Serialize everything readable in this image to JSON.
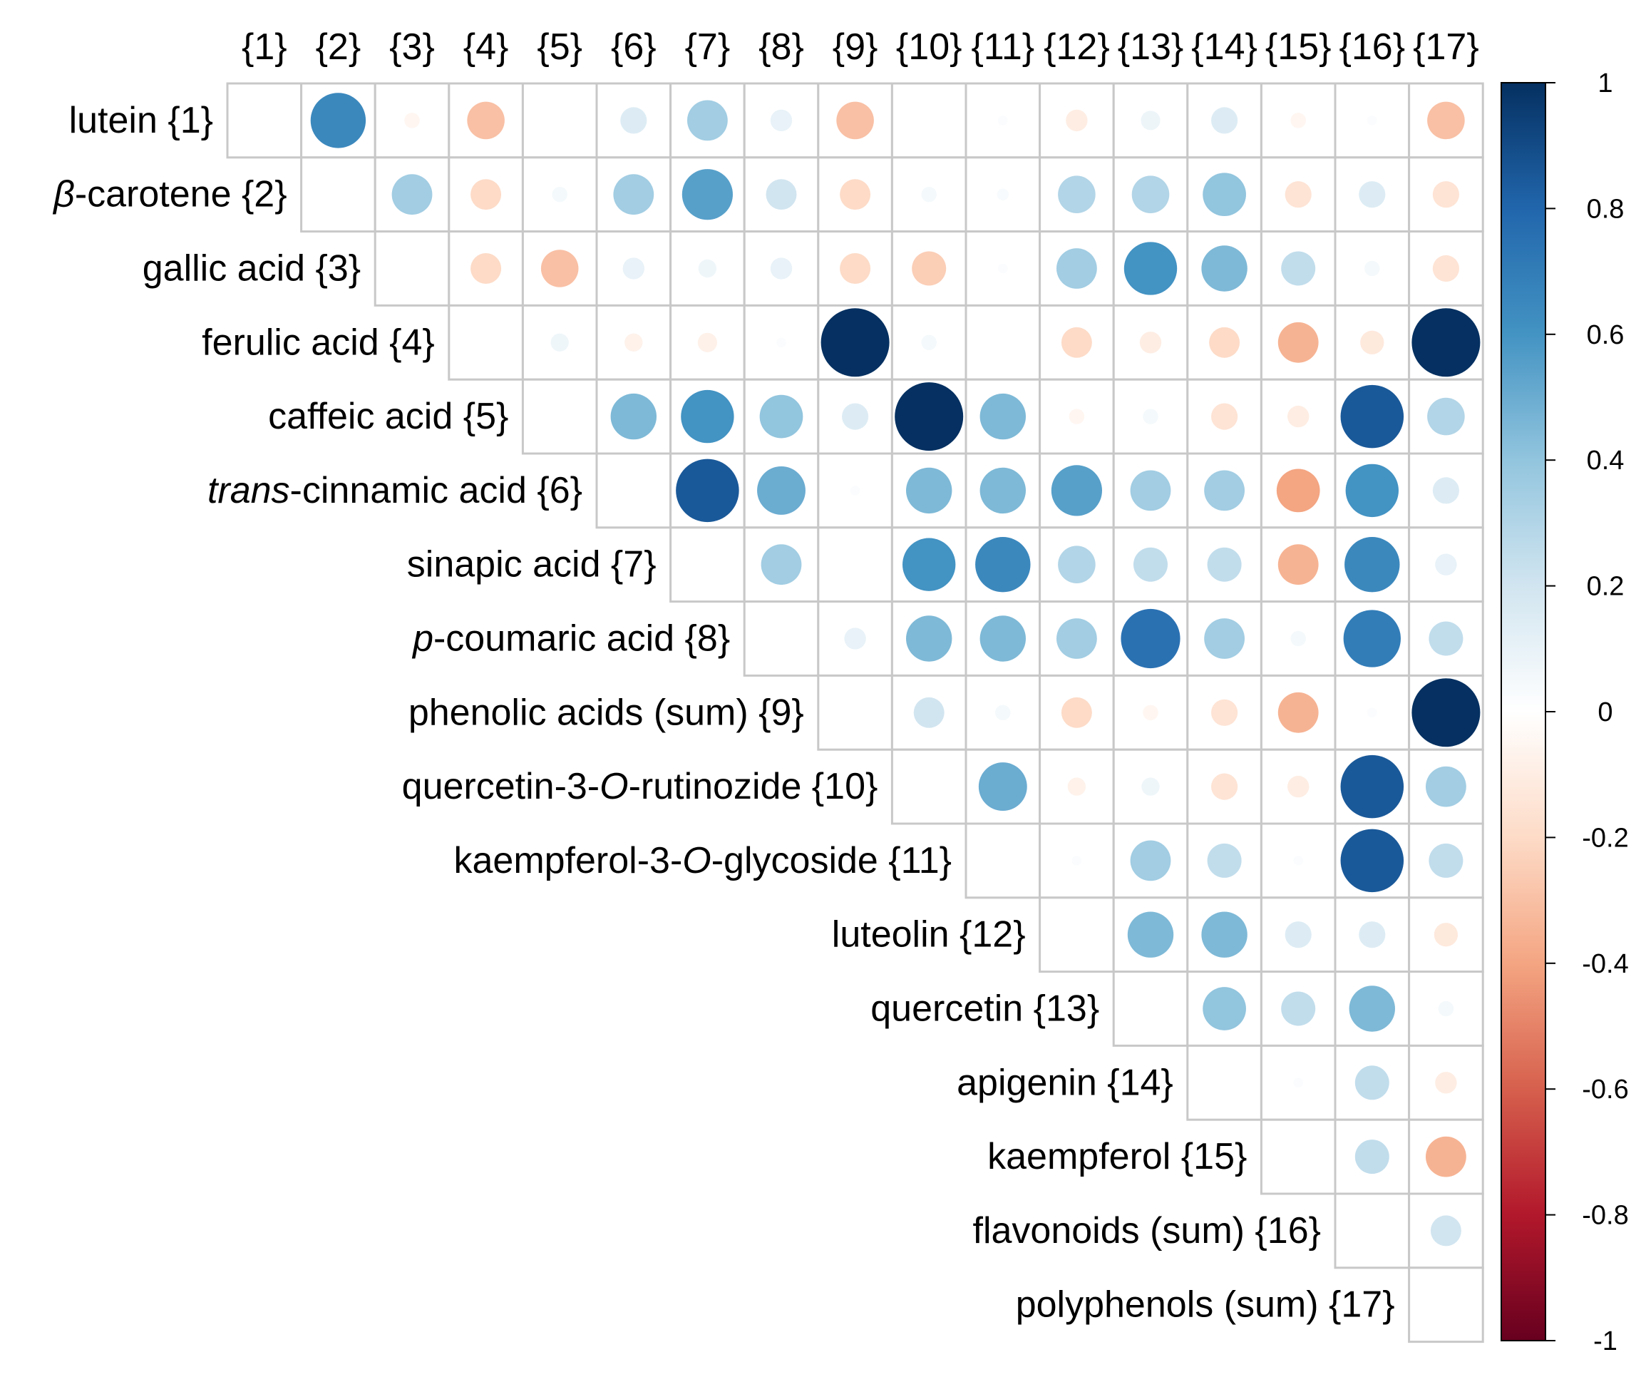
{
  "chart_data": {
    "type": "heatmap",
    "subtype": "correlation-upper-triangle",
    "col_labels": [
      "{1}",
      "{2}",
      "{3}",
      "{4}",
      "{5}",
      "{6}",
      "{7}",
      "{8}",
      "{9}",
      "{10}",
      "{11}",
      "{12}",
      "{13}",
      "{14}",
      "{15}",
      "{16}",
      "{17}"
    ],
    "row_labels": [
      {
        "pre": "",
        "it": "",
        "post": "lutein {1}"
      },
      {
        "pre": "",
        "it": "β",
        "post": "-carotene {2}"
      },
      {
        "pre": "",
        "it": "",
        "post": "gallic acid {3}"
      },
      {
        "pre": "",
        "it": "",
        "post": "ferulic acid {4}"
      },
      {
        "pre": "",
        "it": "",
        "post": "caffeic acid {5}"
      },
      {
        "pre": "",
        "it": "trans",
        "post": "-cinnamic acid {6}"
      },
      {
        "pre": "",
        "it": "",
        "post": "sinapic acid {7}"
      },
      {
        "pre": "",
        "it": "p",
        "post": "-coumaric acid {8}"
      },
      {
        "pre": "",
        "it": "",
        "post": "phenolic acids (sum) {9}"
      },
      {
        "pre": "quercetin-3-",
        "it": "O",
        "post": "-rutinozide {10}"
      },
      {
        "pre": "kaempferol-3-",
        "it": "O",
        "post": "-glycoside {11}"
      },
      {
        "pre": "",
        "it": "",
        "post": "luteolin {12}"
      },
      {
        "pre": "",
        "it": "",
        "post": "quercetin {13}"
      },
      {
        "pre": "",
        "it": "",
        "post": "apigenin {14}"
      },
      {
        "pre": "",
        "it": "",
        "post": "kaempferol {15}"
      },
      {
        "pre": "",
        "it": "",
        "post": "flavonoids (sum) {16}"
      },
      {
        "pre": "",
        "it": "",
        "post": "polyphenols (sum) {17}"
      }
    ],
    "matrix": [
      [
        null,
        0.65,
        -0.05,
        -0.3,
        0.0,
        0.15,
        0.35,
        0.1,
        -0.3,
        0.0,
        0.02,
        -0.1,
        0.08,
        0.15,
        -0.05,
        0.02,
        -0.3
      ],
      [
        null,
        null,
        0.35,
        -0.2,
        0.05,
        0.35,
        0.55,
        0.2,
        -0.2,
        0.05,
        0.03,
        0.3,
        0.3,
        0.4,
        -0.15,
        0.15,
        -0.15
      ],
      [
        null,
        null,
        null,
        -0.2,
        -0.3,
        0.1,
        0.07,
        0.1,
        -0.2,
        -0.25,
        0.02,
        0.35,
        0.6,
        0.45,
        0.25,
        0.05,
        -0.15
      ],
      [
        null,
        null,
        null,
        null,
        0.07,
        -0.07,
        -0.08,
        0.02,
        1.0,
        0.05,
        0.0,
        -0.2,
        -0.1,
        -0.2,
        -0.35,
        -0.12,
        1.0
      ],
      [
        null,
        null,
        null,
        null,
        null,
        0.45,
        0.6,
        0.4,
        0.15,
        1.0,
        0.45,
        -0.05,
        0.05,
        -0.15,
        -0.1,
        0.85,
        0.3
      ],
      [
        null,
        null,
        null,
        null,
        null,
        null,
        0.85,
        0.5,
        0.02,
        0.45,
        0.45,
        0.55,
        0.35,
        0.35,
        -0.4,
        0.6,
        0.15
      ],
      [
        null,
        null,
        null,
        null,
        null,
        null,
        null,
        0.35,
        0.0,
        0.6,
        0.65,
        0.3,
        0.25,
        0.25,
        -0.35,
        0.65,
        0.1
      ],
      [
        null,
        null,
        null,
        null,
        null,
        null,
        null,
        null,
        0.1,
        0.45,
        0.45,
        0.35,
        0.75,
        0.35,
        0.05,
        0.7,
        0.25
      ],
      [
        null,
        null,
        null,
        null,
        null,
        null,
        null,
        null,
        null,
        0.2,
        0.05,
        -0.2,
        -0.05,
        -0.15,
        -0.35,
        0.02,
        1.0
      ],
      [
        null,
        null,
        null,
        null,
        null,
        null,
        null,
        null,
        null,
        null,
        0.5,
        -0.07,
        0.07,
        -0.15,
        -0.1,
        0.85,
        0.35
      ],
      [
        null,
        null,
        null,
        null,
        null,
        null,
        null,
        null,
        null,
        null,
        null,
        0.02,
        0.35,
        0.25,
        0.02,
        0.85,
        0.25
      ],
      [
        null,
        null,
        null,
        null,
        null,
        null,
        null,
        null,
        null,
        null,
        null,
        null,
        0.45,
        0.45,
        0.15,
        0.15,
        -0.12
      ],
      [
        null,
        null,
        null,
        null,
        null,
        null,
        null,
        null,
        null,
        null,
        null,
        null,
        null,
        0.4,
        0.25,
        0.45,
        0.05
      ],
      [
        null,
        null,
        null,
        null,
        null,
        null,
        null,
        null,
        null,
        null,
        null,
        null,
        null,
        null,
        0.02,
        0.25,
        -0.1
      ],
      [
        null,
        null,
        null,
        null,
        null,
        null,
        null,
        null,
        null,
        null,
        null,
        null,
        null,
        null,
        null,
        0.25,
        -0.35
      ],
      [
        null,
        null,
        null,
        null,
        null,
        null,
        null,
        null,
        null,
        null,
        null,
        null,
        null,
        null,
        null,
        null,
        0.2
      ],
      [
        null,
        null,
        null,
        null,
        null,
        null,
        null,
        null,
        null,
        null,
        null,
        null,
        null,
        null,
        null,
        null,
        null
      ]
    ],
    "value_range": [
      -1,
      1
    ],
    "colorbar_ticks": [
      "1",
      "0.8",
      "0.6",
      "0.4",
      "0.2",
      "0",
      "-0.2",
      "-0.4",
      "-0.6",
      "-0.8",
      "-1"
    ],
    "colorbar_tick_values": [
      1,
      0.8,
      0.6,
      0.4,
      0.2,
      0,
      -0.2,
      -0.4,
      -0.6,
      -0.8,
      -1
    ],
    "colorbar_stops": [
      "#67001f",
      "#b2182b",
      "#d6604d",
      "#f4a582",
      "#fddbc7",
      "#ffffff",
      "#d1e5f0",
      "#92c5de",
      "#4393c3",
      "#2166ac",
      "#053061"
    ],
    "colors": {
      "positive": "#053061",
      "negative": "#67001f",
      "grid": "#c8c8c8"
    },
    "legend_placement": "right"
  }
}
